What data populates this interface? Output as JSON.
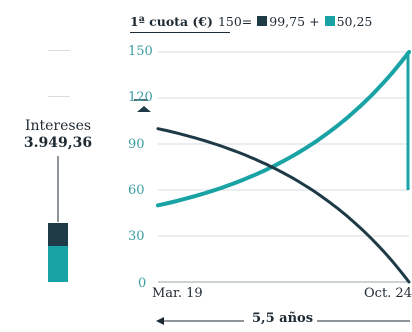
{
  "chart_data": {
    "type": "line",
    "title": "1ª cuota (€)",
    "x": [
      "Mar. 19",
      "Oct. 24"
    ],
    "xtick_labels": [
      "Mar. 19",
      "Oct. 24"
    ],
    "ylim": [
      0,
      150
    ],
    "yticks": [
      0,
      30,
      60,
      90,
      120,
      150
    ],
    "ytick_labels": [
      "0",
      "30",
      "60",
      "90",
      "120",
      "150"
    ],
    "grid": true,
    "first_payment_total": "150",
    "series": [
      {
        "name": "99,75",
        "values": [
          100,
          0
        ]
      },
      {
        "name": "50,25",
        "values": [
          50,
          150
        ]
      }
    ],
    "side_title": "Intereses",
    "side_value": "3.949,36",
    "period_label": "5,5 años",
    "colors": {
      "dark": "#1e3a46",
      "teal": "#1aa3a5",
      "grid": "#d7dde0",
      "tick": "#3a9ea1"
    }
  }
}
